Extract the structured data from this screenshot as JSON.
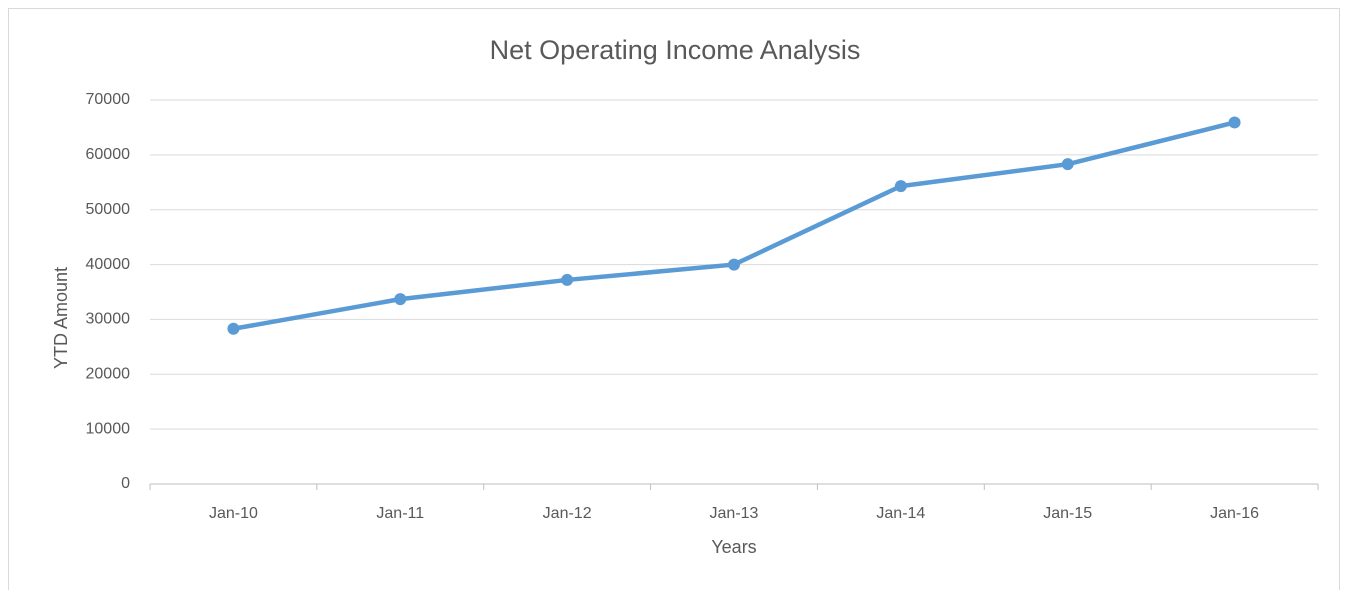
{
  "chart_data": {
    "type": "line",
    "title": "Net Operating Income Analysis",
    "x_label": "Years",
    "y_label": "YTD Amount",
    "categories": [
      "Jan-10",
      "Jan-11",
      "Jan-12",
      "Jan-13",
      "Jan-14",
      "Jan-15",
      "Jan-16"
    ],
    "values": [
      28300,
      33700,
      37200,
      40000,
      54300,
      58300,
      65900
    ],
    "color": "#5b9bd5",
    "ylim": [
      0,
      70000
    ],
    "yticks": [
      0,
      10000,
      20000,
      30000,
      40000,
      50000,
      60000,
      70000
    ],
    "grid": true
  }
}
